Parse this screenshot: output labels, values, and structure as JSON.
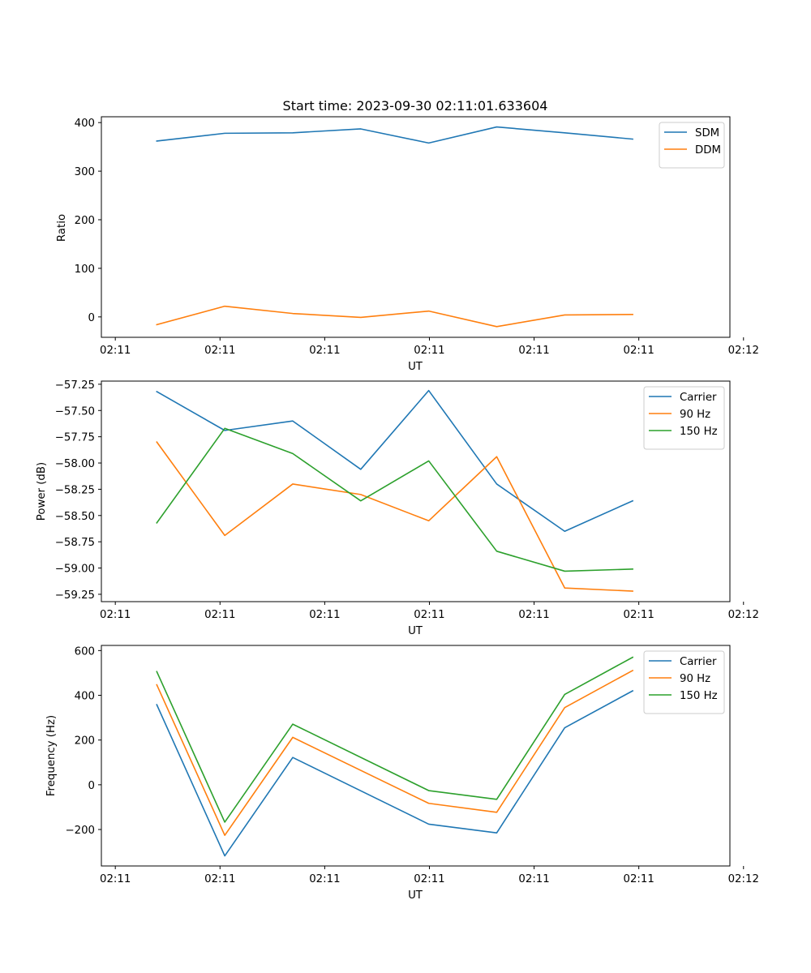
{
  "chart_data": [
    {
      "type": "line",
      "title": "Start time: 2023-09-30 02:11:01.633604",
      "xlabel": "UT",
      "ylabel": "Ratio",
      "x": [
        1,
        2,
        3,
        4,
        5,
        6,
        7,
        8
      ],
      "xlim": [
        0.185,
        9.43
      ],
      "xticks": [
        0.39,
        1.93,
        3.47,
        5.01,
        6.55,
        8.09,
        9.63
      ],
      "xtick_labels": [
        "02:11",
        "02:11",
        "02:11",
        "02:11",
        "02:11",
        "02:11",
        "02:12"
      ],
      "ylim": [
        -42,
        412
      ],
      "yticks": [
        0,
        100,
        200,
        300,
        400
      ],
      "ytick_labels": [
        "0",
        "100",
        "200",
        "300",
        "400"
      ],
      "legend_position": "upper right",
      "series": [
        {
          "name": "SDM",
          "color": "#1f77b4",
          "values": [
            362,
            378,
            379,
            387,
            358,
            391,
            379,
            366
          ]
        },
        {
          "name": "DDM",
          "color": "#ff7f0e",
          "values": [
            -16,
            22,
            7,
            -1,
            12,
            -20,
            4,
            5
          ]
        }
      ]
    },
    {
      "type": "line",
      "title": "",
      "xlabel": "UT",
      "ylabel": "Power (dB)",
      "x": [
        1,
        2,
        3,
        4,
        5,
        6,
        7,
        8
      ],
      "xlim": [
        0.185,
        9.43
      ],
      "xticks": [
        0.39,
        1.93,
        3.47,
        5.01,
        6.55,
        8.09,
        9.63
      ],
      "xtick_labels": [
        "02:11",
        "02:11",
        "02:11",
        "02:11",
        "02:11",
        "02:11",
        "02:12"
      ],
      "ylim": [
        -59.32,
        -57.22
      ],
      "yticks": [
        -57.25,
        -57.5,
        -57.75,
        -58.0,
        -58.25,
        -58.5,
        -58.75,
        -59.0,
        -59.25
      ],
      "ytick_labels": [
        "−57.25",
        "−57.50",
        "−57.75",
        "−58.00",
        "−58.25",
        "−58.50",
        "−58.75",
        "−59.00",
        "−59.25"
      ],
      "legend_position": "upper right",
      "series": [
        {
          "name": "Carrier",
          "color": "#1f77b4",
          "values": [
            -57.32,
            -57.69,
            -57.6,
            -58.06,
            -57.31,
            -58.2,
            -58.65,
            -58.36
          ]
        },
        {
          "name": "90 Hz",
          "color": "#ff7f0e",
          "values": [
            -57.8,
            -58.69,
            -58.2,
            -58.3,
            -58.55,
            -57.94,
            -59.19,
            -59.22
          ]
        },
        {
          "name": "150 Hz",
          "color": "#2ca02c",
          "values": [
            -58.57,
            -57.67,
            -57.91,
            -58.36,
            -57.98,
            -58.84,
            -59.03,
            -59.01
          ]
        }
      ]
    },
    {
      "type": "line",
      "title": "",
      "xlabel": "UT",
      "ylabel": "Frequency (Hz)",
      "x": [
        1,
        2,
        3,
        4,
        5,
        6,
        7,
        8
      ],
      "xlim": [
        0.185,
        9.43
      ],
      "xticks": [
        0.39,
        1.93,
        3.47,
        5.01,
        6.55,
        8.09,
        9.63
      ],
      "xtick_labels": [
        "02:11",
        "02:11",
        "02:11",
        "02:11",
        "02:11",
        "02:11",
        "02:12"
      ],
      "ylim": [
        -363,
        623
      ],
      "yticks": [
        -200,
        0,
        200,
        400,
        600
      ],
      "ytick_labels": [
        "−200",
        "0",
        "200",
        "400",
        "600"
      ],
      "legend_position": "upper right",
      "series": [
        {
          "name": "Carrier",
          "color": "#1f77b4",
          "values": [
            358,
            -318,
            122,
            null,
            -176,
            -215,
            255,
            420
          ]
        },
        {
          "name": "90 Hz",
          "color": "#ff7f0e",
          "values": [
            447,
            -226,
            212,
            null,
            -83,
            -123,
            345,
            511
          ]
        },
        {
          "name": "150 Hz",
          "color": "#2ca02c",
          "values": [
            506,
            -167,
            271,
            null,
            -26,
            -65,
            404,
            570
          ]
        }
      ]
    }
  ]
}
